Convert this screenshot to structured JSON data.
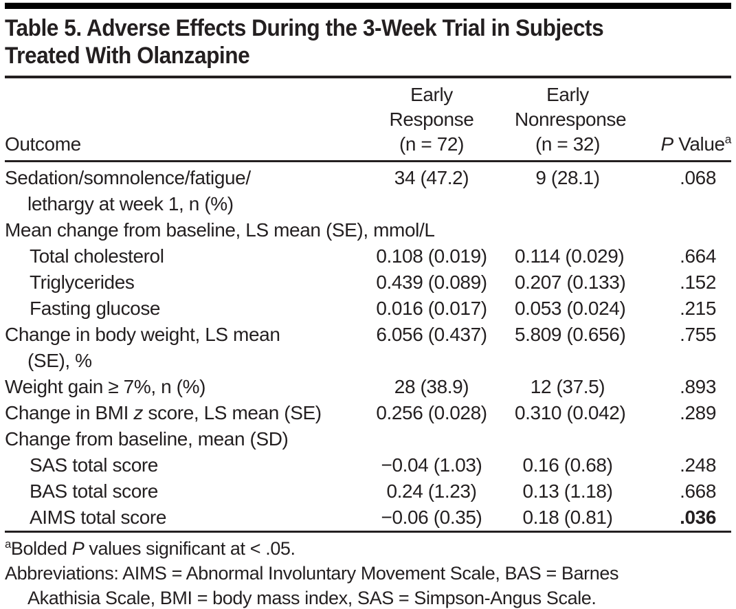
{
  "colors": {
    "background": "#ffffff",
    "text": "#231f20",
    "top_bar": "#000000",
    "rules": "#231f20"
  },
  "title": {
    "line1": "Table 5. Adverse Effects During the 3-Week Trial in Subjects",
    "line2": "Treated With Olanzapine"
  },
  "table": {
    "header": {
      "outcome": "Outcome",
      "early_response": "Early\nResponse\n(n = 72)",
      "early_nonresponse": "Early\nNonresponse\n(n = 32)",
      "p_italic": "P",
      "p_label": " Value",
      "p_sup": "a"
    },
    "rows": [
      {
        "label": "Sedation/somnolence/fatigue/",
        "label2": "lethargy at week 1, n (%)",
        "early_response": "34 (47.2)",
        "early_nonresponse": "9 (28.1)",
        "p_value": ".068"
      },
      {
        "section": "Mean change from baseline, LS mean (SE), mmol/L"
      },
      {
        "label": "Total cholesterol",
        "early_response": "0.108 (0.019)",
        "early_nonresponse": "0.114 (0.029)",
        "p_value": ".664"
      },
      {
        "label": "Triglycerides",
        "early_response": "0.439 (0.089)",
        "early_nonresponse": "0.207 (0.133)",
        "p_value": ".152"
      },
      {
        "label": "Fasting glucose",
        "early_response": "0.016 (0.017)",
        "early_nonresponse": "0.053 (0.024)",
        "p_value": ".215"
      },
      {
        "label": "Change in body weight, LS mean",
        "label2": "(SE), %",
        "early_response": "6.056 (0.437)",
        "early_nonresponse": "5.809 (0.656)",
        "p_value": ".755"
      },
      {
        "label": "Weight gain ≥ 7%, n (%)",
        "early_response": "28 (38.9)",
        "early_nonresponse": "12 (37.5)",
        "p_value": ".893"
      },
      {
        "label_pre": "Change in BMI ",
        "label_italic": "z",
        "label_post": " score, LS mean (SE)",
        "early_response": "0.256 (0.028)",
        "early_nonresponse": "0.310 (0.042)",
        "p_value": ".289"
      },
      {
        "section": "Change from baseline, mean (SD)"
      },
      {
        "label": "SAS total score",
        "early_response": "−0.04 (1.03)",
        "early_nonresponse": "0.16 (0.68)",
        "p_value": ".248"
      },
      {
        "label": "BAS total score",
        "early_response": "0.24 (1.23)",
        "early_nonresponse": "0.13 (1.18)",
        "p_value": ".668"
      },
      {
        "label": "AIMS total score",
        "early_response": "−0.06 (0.35)",
        "early_nonresponse": "0.18 (0.81)",
        "p_value": ".036"
      }
    ]
  },
  "footnotes": {
    "sig_sup": "a",
    "sig_pre": "Bolded ",
    "sig_italic": "P",
    "sig_post": " values significant at < .05.",
    "abbr_line1": "Abbreviations: AIMS = Abnormal Involuntary Movement Scale, BAS = Barnes",
    "abbr_line2": "Akathisia Scale, BMI = body mass index, SAS = Simpson-Angus Scale."
  }
}
